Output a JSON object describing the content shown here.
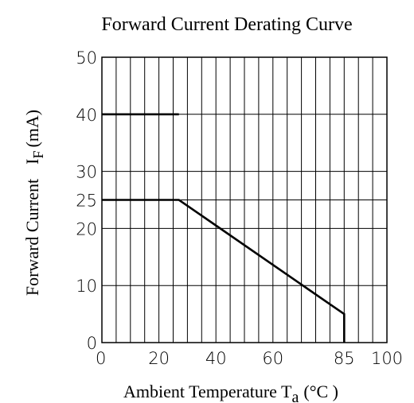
{
  "chart_data": {
    "type": "line",
    "title": "Forward Current Derating Curve",
    "xlabel": {
      "main": "Ambient Temperature T",
      "sub": "a",
      "unit": "(°C )"
    },
    "ylabel": {
      "main": "Forward Current",
      "symbol": "I",
      "sub": "F",
      "unit": "(mA)"
    },
    "xlim": [
      0,
      100
    ],
    "ylim": [
      0,
      50
    ],
    "x_ticks": [
      "0",
      "20",
      "40",
      "60",
      "85",
      "100"
    ],
    "y_ticks": [
      "0",
      "10",
      "20",
      "25",
      "30",
      "40",
      "50"
    ],
    "grid": true,
    "series": [
      {
        "points": [
          [
            0,
            25
          ],
          [
            27,
            25
          ],
          [
            85,
            5
          ],
          [
            85,
            0
          ]
        ]
      },
      {
        "points": [
          [
            0,
            40
          ],
          [
            27,
            40
          ]
        ]
      }
    ]
  }
}
